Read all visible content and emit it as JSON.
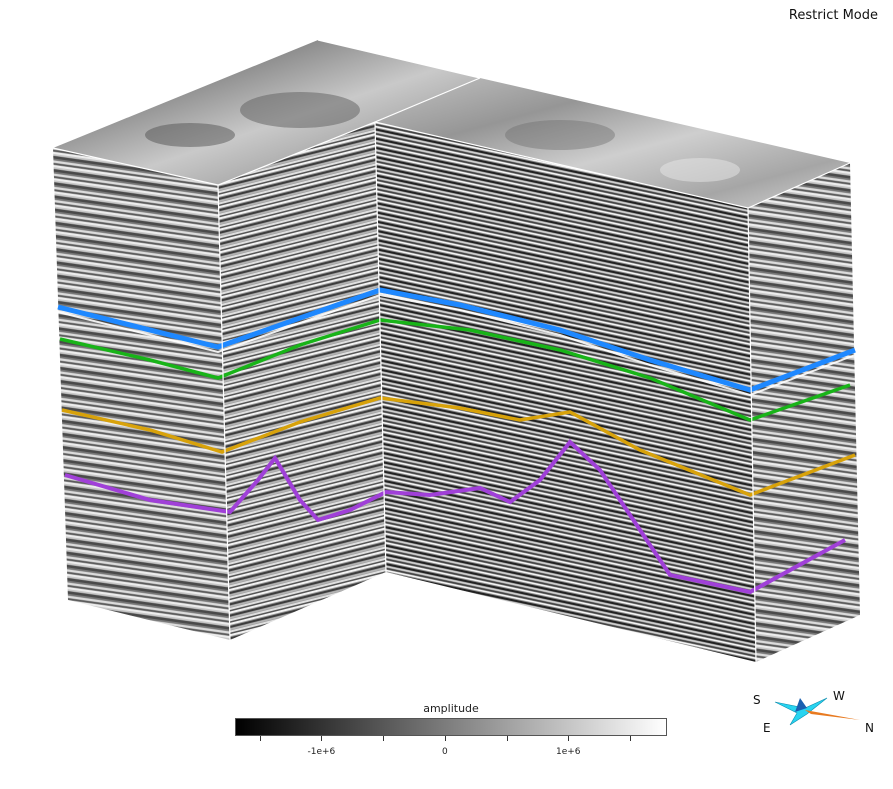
{
  "mode_label": "Restrict Mode",
  "colorbar": {
    "title": "amplitude",
    "tick_labels": [
      {
        "value": -1000000,
        "label": "-1e+6"
      },
      {
        "value": 0,
        "label": "0"
      },
      {
        "value": 1000000,
        "label": "1e+6"
      }
    ],
    "range": [
      -1700000,
      1800000
    ],
    "minor_tick_values": [
      -1500000,
      -1000000,
      -500000,
      0,
      500000,
      1000000,
      1500000
    ],
    "colormap": [
      "#000000",
      "#ffffff"
    ]
  },
  "compass": {
    "labels": {
      "s": "S",
      "w": "W",
      "e": "E",
      "n": "N"
    }
  },
  "horizons": [
    {
      "name": "blue",
      "color": "#1e88ff"
    },
    {
      "name": "green",
      "color": "#18b418"
    },
    {
      "name": "orange",
      "color": "#d8a20a"
    },
    {
      "name": "purple",
      "color": "#a040d8"
    }
  ]
}
